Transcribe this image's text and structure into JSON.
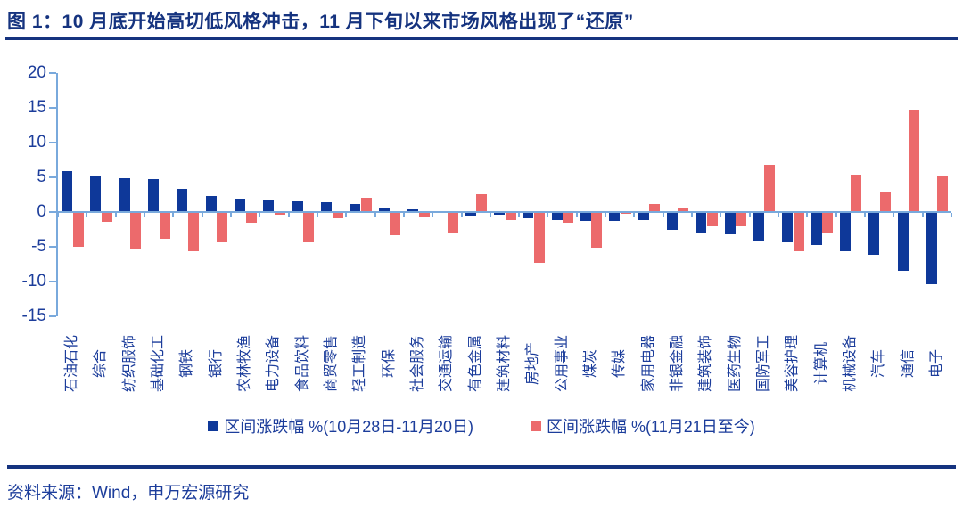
{
  "header": {
    "title": "图 1：10 月底开始高切低风格冲击，11 月下旬以来市场风格出现了“还原”"
  },
  "footer": {
    "source": "资料来源：Wind，申万宏源研究"
  },
  "colors": {
    "navy_text": "#1C3D9B",
    "title_navy": "#15337F",
    "axis_blue": "#79A9DC",
    "bar_blue": "#0E3899",
    "bar_red": "#EC6A6C"
  },
  "chart_data": {
    "type": "bar",
    "title": "图 1：10 月底开始高切低风格冲击，11 月下旬以来市场风格出现了“还原”",
    "xlabel": "",
    "ylabel": "",
    "ylim": [
      -15,
      20
    ],
    "yticks": [
      20,
      15,
      10,
      5,
      0,
      -5,
      -10,
      -15
    ],
    "grid": false,
    "legend_position": "bottom",
    "categories": [
      "石油石化",
      "综合",
      "纺织服饰",
      "基础化工",
      "钢铁",
      "银行",
      "农林牧渔",
      "电力设备",
      "食品饮料",
      "商贸零售",
      "轻工制造",
      "环保",
      "社会服务",
      "交通运输",
      "有色金属",
      "建筑材料",
      "房地产",
      "公用事业",
      "煤炭",
      "传媒",
      "家用电器",
      "非银金融",
      "建筑装饰",
      "医药生物",
      "国防军工",
      "美容护理",
      "计算机",
      "机械设备",
      "汽车",
      "通信",
      "电子"
    ],
    "series": [
      {
        "name": "区间涨跌幅 %(10月28日-11月20日)",
        "color": "#0E3899",
        "values": [
          5.9,
          5.1,
          4.9,
          4.7,
          3.3,
          2.3,
          1.9,
          1.7,
          1.6,
          1.4,
          1.1,
          0.7,
          0.4,
          -0.1,
          -0.5,
          -0.4,
          -0.9,
          -1.2,
          -1.3,
          -1.3,
          -1.2,
          -2.6,
          -2.9,
          -3.2,
          -4.1,
          -4.3,
          -4.8,
          -5.6,
          -6.2,
          -8.5,
          -10.4
        ]
      },
      {
        "name": "区间涨跌幅 %(11月21日至今)",
        "color": "#EC6A6C",
        "values": [
          -5.0,
          -1.4,
          -5.4,
          -3.9,
          -5.6,
          -4.4,
          -1.5,
          -0.4,
          -4.3,
          -0.9,
          2.0,
          -3.3,
          -0.8,
          -2.9,
          2.6,
          -1.2,
          -7.3,
          -1.5,
          -5.1,
          -0.3,
          1.2,
          0.6,
          -2.0,
          -2.1,
          6.8,
          -5.7,
          -3.1,
          5.4,
          2.9,
          14.6,
          5.1
        ]
      }
    ]
  }
}
